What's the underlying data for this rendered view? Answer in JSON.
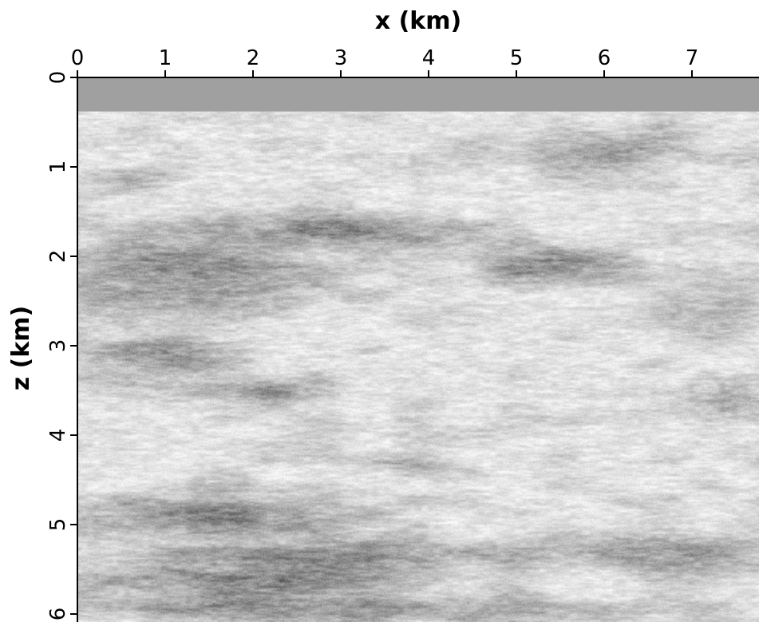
{
  "chart_data": {
    "type": "heatmap",
    "title": "",
    "xlabel": "x (km)",
    "ylabel": "z (km)",
    "xlim": [
      0,
      7.8
    ],
    "ylim": [
      0,
      6.0
    ],
    "x_axis_position": "top",
    "y_axis_inverted": true,
    "x_ticks": [
      0,
      1,
      2,
      3,
      4,
      5,
      6,
      7
    ],
    "y_ticks": [
      0,
      1,
      2,
      3,
      4,
      5,
      6
    ],
    "x_tick_labels": [
      "0",
      "1",
      "2",
      "3",
      "4",
      "5",
      "6",
      "7"
    ],
    "y_tick_labels": [
      "0",
      "1",
      "2",
      "3",
      "4",
      "5",
      "6"
    ],
    "colormap": "grayscale",
    "grid": false,
    "masked_region": {
      "z_min": 0,
      "z_max": 0.38,
      "color": "#a0a0a0"
    },
    "texture": "horizontally stretched random field, light gray with darker patches",
    "dark_patches": [
      {
        "x_center": 2.8,
        "z_center": 1.7,
        "x_width": 3.2,
        "z_height": 0.45,
        "intensity": 0.55
      },
      {
        "x_center": 1.2,
        "z_center": 2.2,
        "x_width": 3.0,
        "z_height": 0.9,
        "intensity": 0.55
      },
      {
        "x_center": 5.3,
        "z_center": 2.1,
        "x_width": 1.8,
        "z_height": 0.4,
        "intensity": 0.55
      },
      {
        "x_center": 5.8,
        "z_center": 0.8,
        "x_width": 2.6,
        "z_height": 0.5,
        "intensity": 0.45
      },
      {
        "x_center": 0.6,
        "z_center": 1.2,
        "x_width": 1.2,
        "z_height": 0.3,
        "intensity": 0.4
      },
      {
        "x_center": 1.0,
        "z_center": 3.1,
        "x_width": 2.2,
        "z_height": 0.5,
        "intensity": 0.5
      },
      {
        "x_center": 2.2,
        "z_center": 3.5,
        "x_width": 2.2,
        "z_height": 0.35,
        "intensity": 0.45
      },
      {
        "x_center": 7.3,
        "z_center": 2.6,
        "x_width": 1.2,
        "z_height": 0.6,
        "intensity": 0.45
      },
      {
        "x_center": 7.5,
        "z_center": 3.6,
        "x_width": 0.8,
        "z_height": 0.4,
        "intensity": 0.35
      },
      {
        "x_center": 3.8,
        "z_center": 4.3,
        "x_width": 0.9,
        "z_height": 0.15,
        "intensity": 0.35
      },
      {
        "x_center": 1.6,
        "z_center": 4.9,
        "x_width": 3.4,
        "z_height": 0.5,
        "intensity": 0.6
      },
      {
        "x_center": 3.6,
        "z_center": 5.3,
        "x_width": 3.8,
        "z_height": 0.4,
        "intensity": 0.4
      },
      {
        "x_center": 2.0,
        "z_center": 5.6,
        "x_width": 4.2,
        "z_height": 0.6,
        "intensity": 0.65
      },
      {
        "x_center": 6.9,
        "z_center": 5.3,
        "x_width": 2.2,
        "z_height": 0.5,
        "intensity": 0.55
      },
      {
        "x_center": 3.2,
        "z_center": 5.95,
        "x_width": 6.0,
        "z_height": 0.3,
        "intensity": 0.5
      }
    ]
  }
}
